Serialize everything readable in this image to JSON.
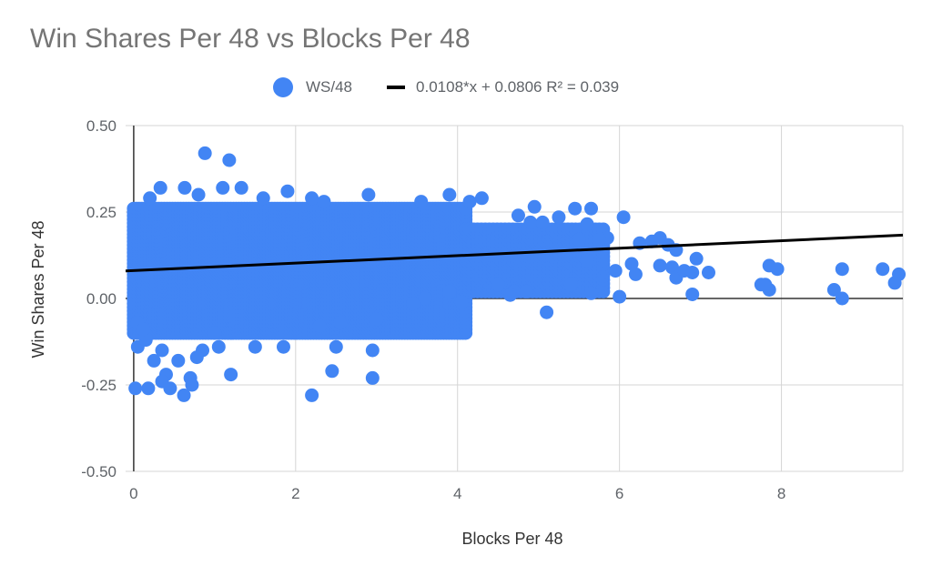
{
  "chart_data": {
    "type": "scatter",
    "title": "Win Shares Per 48 vs Blocks Per 48",
    "xlabel": "Blocks Per 48",
    "ylabel": "Win Shares Per 48",
    "xlim": [
      -0.1,
      9.5
    ],
    "ylim": [
      -0.5,
      0.5
    ],
    "x_ticks": [
      0,
      2,
      4,
      6,
      8
    ],
    "x_tick_labels": [
      "0",
      "2",
      "4",
      "6",
      "8"
    ],
    "y_ticks": [
      0.5,
      0.25,
      0,
      -0.25,
      -0.5
    ],
    "y_tick_labels": [
      "0.50",
      "0.25",
      "0.00",
      "-0.25",
      "-0.50"
    ],
    "grid": true,
    "legend_position": "top-center",
    "colors": {
      "points": "#4285f4",
      "trendline": "#000000",
      "grid": "#d5d5d5",
      "axis": "#333333",
      "title": "#757575",
      "labels": "#5f6368"
    },
    "series": [
      {
        "name": "WS/48",
        "points": [
          [
            0.88,
            0.42
          ],
          [
            1.18,
            0.4
          ],
          [
            0.33,
            0.32
          ],
          [
            0.63,
            0.32
          ],
          [
            1.1,
            0.32
          ],
          [
            1.33,
            0.32
          ],
          [
            1.9,
            0.31
          ],
          [
            2.9,
            0.3
          ],
          [
            3.9,
            0.3
          ],
          [
            4.3,
            0.29
          ],
          [
            0.2,
            0.29
          ],
          [
            0.8,
            0.3
          ],
          [
            2.2,
            0.29
          ],
          [
            1.6,
            0.29
          ],
          [
            2.35,
            0.28
          ],
          [
            4.15,
            0.28
          ],
          [
            3.55,
            0.28
          ],
          [
            4.95,
            0.265
          ],
          [
            5.65,
            0.26
          ],
          [
            5.45,
            0.26
          ],
          [
            6.05,
            0.235
          ],
          [
            4.75,
            0.24
          ],
          [
            5.25,
            0.235
          ],
          [
            5.6,
            0.215
          ],
          [
            4.9,
            0.22
          ],
          [
            5.05,
            0.22
          ],
          [
            5.85,
            0.175
          ],
          [
            6.5,
            0.175
          ],
          [
            6.25,
            0.16
          ],
          [
            6.6,
            0.155
          ],
          [
            6.4,
            0.165
          ],
          [
            6.7,
            0.14
          ],
          [
            5.75,
            0.17
          ],
          [
            5.5,
            0.17
          ],
          [
            5.6,
            0.11
          ],
          [
            5.95,
            0.08
          ],
          [
            6.15,
            0.1
          ],
          [
            6.2,
            0.07
          ],
          [
            6.5,
            0.095
          ],
          [
            6.65,
            0.09
          ],
          [
            6.7,
            0.06
          ],
          [
            6.8,
            0.08
          ],
          [
            6.95,
            0.115
          ],
          [
            6.9,
            0.075
          ],
          [
            7.1,
            0.075
          ],
          [
            7.85,
            0.095
          ],
          [
            7.95,
            0.085
          ],
          [
            8.75,
            0.085
          ],
          [
            9.25,
            0.085
          ],
          [
            9.45,
            0.07
          ],
          [
            9.4,
            0.045
          ],
          [
            7.8,
            0.04
          ],
          [
            7.75,
            0.04
          ],
          [
            7.85,
            0.025
          ],
          [
            6.9,
            0.012
          ],
          [
            8.65,
            0.025
          ],
          [
            8.75,
            0.0
          ],
          [
            5.1,
            -0.04
          ],
          [
            5.65,
            0.015
          ],
          [
            5.4,
            0.04
          ],
          [
            4.5,
            0.04
          ],
          [
            4.7,
            0.02
          ],
          [
            4.65,
            0.01
          ],
          [
            6.0,
            0.005
          ],
          [
            4.85,
            0.02
          ],
          [
            3.9,
            0.02
          ],
          [
            3.6,
            0.0
          ],
          [
            4.05,
            -0.01
          ],
          [
            3.45,
            -0.015
          ],
          [
            2.3,
            -0.08
          ],
          [
            2.55,
            -0.07
          ],
          [
            3.0,
            -0.06
          ],
          [
            2.5,
            -0.14
          ],
          [
            2.95,
            -0.15
          ],
          [
            2.45,
            -0.21
          ],
          [
            2.95,
            -0.23
          ],
          [
            2.2,
            -0.28
          ],
          [
            1.85,
            -0.14
          ],
          [
            1.5,
            -0.14
          ],
          [
            1.05,
            -0.14
          ],
          [
            0.85,
            -0.15
          ],
          [
            0.78,
            -0.17
          ],
          [
            0.55,
            -0.18
          ],
          [
            0.25,
            -0.18
          ],
          [
            0.4,
            -0.22
          ],
          [
            0.35,
            -0.24
          ],
          [
            0.7,
            -0.23
          ],
          [
            0.72,
            -0.25
          ],
          [
            0.45,
            -0.26
          ],
          [
            0.62,
            -0.28
          ],
          [
            0.18,
            -0.26
          ],
          [
            0.02,
            -0.26
          ],
          [
            1.2,
            -0.22
          ],
          [
            0.05,
            -0.14
          ],
          [
            0.15,
            -0.12
          ],
          [
            0.35,
            -0.15
          ],
          [
            0.05,
            -0.07
          ],
          [
            0.12,
            -0.09
          ],
          [
            1.0,
            -0.1
          ]
        ],
        "cluster": {
          "x_range": [
            0.0,
            4.1
          ],
          "y_range": [
            -0.1,
            0.26
          ],
          "x_count": 120,
          "y_count": 34
        },
        "cluster_tail": {
          "x_range": [
            4.1,
            5.8
          ],
          "y_range": [
            0.02,
            0.2
          ],
          "x_count": 35,
          "y_count": 16
        }
      },
      {
        "name": "0.0108*x + 0.0806 R² = 0.039",
        "type": "trendline",
        "slope": 0.0108,
        "intercept": 0.0806,
        "r_squared": 0.039
      }
    ]
  },
  "legend": {
    "series_label": "WS/48",
    "trend_label": "0.0108*x + 0.0806 R² = 0.039"
  }
}
